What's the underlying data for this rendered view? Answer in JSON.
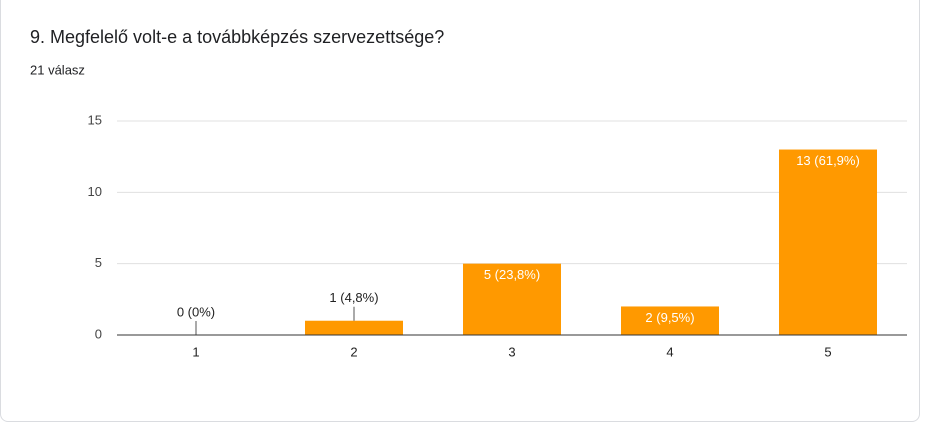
{
  "chart_data": {
    "type": "bar",
    "title": "9. Megfelelő volt-e a továbbképzés szervezettsége?",
    "subtitle": "21 válasz",
    "categories": [
      "1",
      "2",
      "3",
      "4",
      "5"
    ],
    "values": [
      0,
      1,
      5,
      2,
      13
    ],
    "value_labels": [
      "0 (0%)",
      "1 (4,8%)",
      "5 (23,8%)",
      "2 (9,5%)",
      "13 (61,9%)"
    ],
    "color": "#ff9900",
    "ylim": [
      0,
      15
    ],
    "yticks": [
      0,
      5,
      10,
      15
    ],
    "grid": true
  }
}
